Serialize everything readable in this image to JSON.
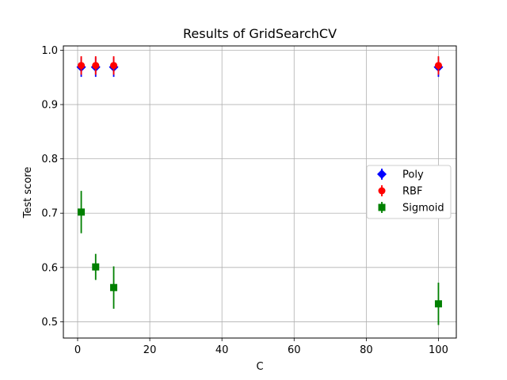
{
  "chart_data": {
    "type": "scatter",
    "title": "Results of GridSearchCV",
    "xlabel": "C",
    "ylabel": "Test score",
    "xlim": [
      -3.95,
      104.95
    ],
    "ylim": [
      0.47,
      1.008
    ],
    "xticks": [
      0,
      20,
      40,
      60,
      80,
      100
    ],
    "yticks": [
      0.5,
      0.6,
      0.7,
      0.8,
      0.9,
      1.0
    ],
    "xtick_labels": [
      "0",
      "20",
      "40",
      "60",
      "80",
      "100"
    ],
    "ytick_labels": [
      "0.5",
      "0.6",
      "0.7",
      "0.8",
      "0.9",
      "1.0"
    ],
    "grid": true,
    "legend_position": "center-right",
    "series": [
      {
        "name": "Poly",
        "marker": "diamond",
        "color": "#0000ff",
        "x": [
          1,
          5,
          10,
          100
        ],
        "y": [
          0.969,
          0.969,
          0.969,
          0.969
        ],
        "err": [
          0.018,
          0.018,
          0.018,
          0.018
        ]
      },
      {
        "name": "RBF",
        "marker": "circle",
        "color": "#ff0000",
        "x": [
          1,
          5,
          10,
          100
        ],
        "y": [
          0.972,
          0.972,
          0.972,
          0.972
        ],
        "err": [
          0.017,
          0.017,
          0.017,
          0.017
        ]
      },
      {
        "name": "Sigmoid",
        "marker": "square",
        "color": "#008000",
        "x": [
          1,
          5,
          10,
          100
        ],
        "y": [
          0.702,
          0.601,
          0.563,
          0.533
        ],
        "err": [
          0.039,
          0.024,
          0.039,
          0.039
        ]
      }
    ]
  }
}
